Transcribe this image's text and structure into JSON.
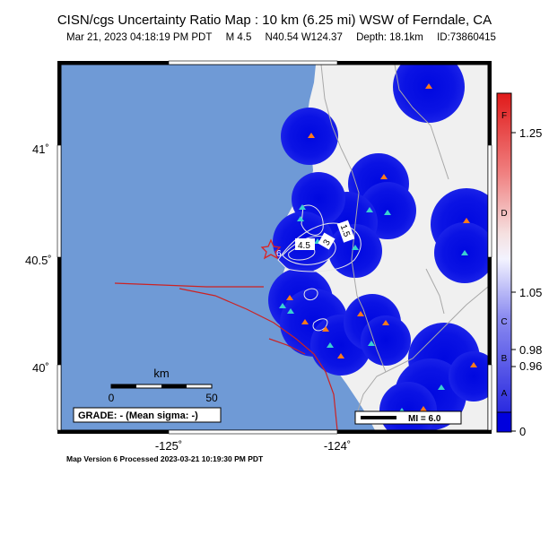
{
  "header": {
    "title": "CISN/cgs Uncertainty Ratio Map : 10 km (6.25 mi) WSW of Ferndale, CA",
    "date": "Mar 21, 2023 04:18:19 PM PDT",
    "magnitude": "M 4.5",
    "location": "N40.54 W124.37",
    "depth": "Depth: 18.1km",
    "event_id": "ID:73860415"
  },
  "axes": {
    "lat_ticks": [
      "41˚",
      "40.5˚",
      "40˚"
    ],
    "lon_ticks": [
      "-125˚",
      "-124˚"
    ]
  },
  "scale_bar": {
    "unit": "km",
    "start": "0",
    "end": "50"
  },
  "grade_box": "GRADE: - (Mean sigma: -)",
  "mi_legend": "MI = 6.0",
  "contour_labels": [
    "6",
    "4.5",
    "3",
    "1.5"
  ],
  "colorbar": {
    "ticks": [
      "1.25",
      "1.05",
      "0.98",
      "0.96",
      "0"
    ],
    "grades": [
      "F",
      "D",
      "C",
      "B",
      "A"
    ]
  },
  "footer": "Map Version 6 Processed 2023-03-21 10:19:30 PM PDT",
  "colors": {
    "ocean": "#6f9ad6",
    "land": "#f0f0f0",
    "station_blue": "#0000dd",
    "fault": "#cc2222",
    "epicenter": "#dd2222"
  }
}
